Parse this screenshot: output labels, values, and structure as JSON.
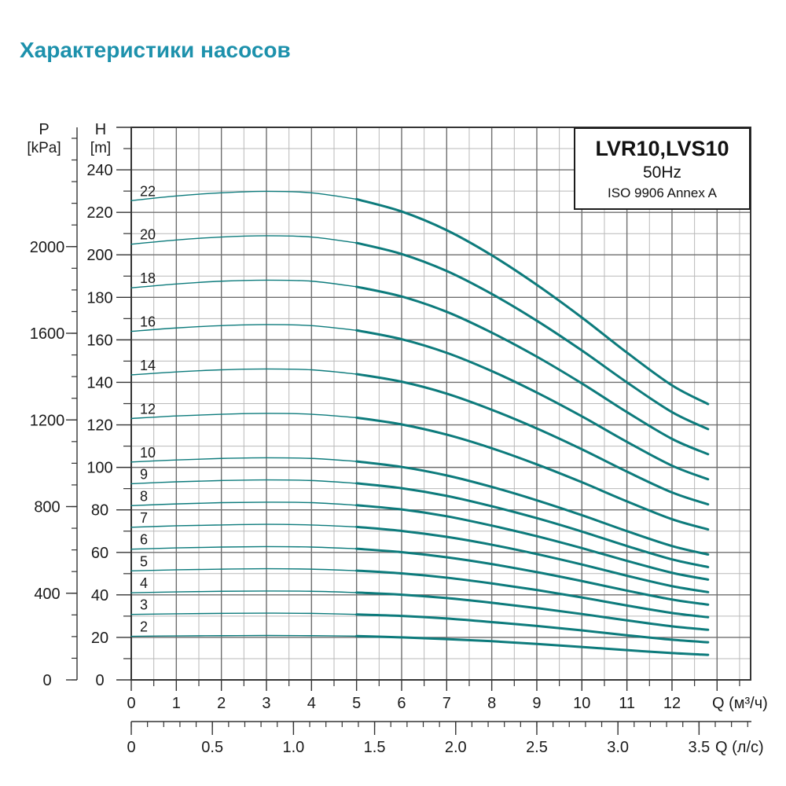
{
  "page_title": "Характеристики насосов",
  "accent_color": "#1d91ac",
  "legend": {
    "model": "LVR10,LVS10",
    "frequency": "50Hz",
    "standard": "ISO 9906 Annex A"
  },
  "axes": {
    "pressure": {
      "name": "P",
      "unit": "[kPa]",
      "tick_labels": [
        0,
        400,
        800,
        1200,
        1600,
        2000
      ],
      "minor_step_kpa": 100,
      "minor_max_kpa": 2500
    },
    "head": {
      "name": "H",
      "unit": "[m]",
      "tick_labels": [
        0,
        20,
        40,
        60,
        80,
        100,
        120,
        140,
        160,
        180,
        200,
        220,
        240
      ],
      "minor_step_m": 10,
      "minor_max_m": 250
    },
    "flow_m3h": {
      "unit_label": "Q (м³/ч)",
      "tick_labels": [
        0,
        1,
        2,
        3,
        4,
        5,
        6,
        7,
        8,
        9,
        10,
        11,
        12
      ],
      "major_tick_max": 13,
      "minor_step": 0.5,
      "minor_max": 13.5
    },
    "flow_ls": {
      "unit_label": "Q (л/с)",
      "tick_labels": [
        "0",
        "0.5",
        "1.0",
        "1.5",
        "2.0",
        "2.5",
        "3.0",
        "3.5"
      ],
      "major_step_ls": 0.5,
      "minor_step_ls": 0.1,
      "minor_max_ls": 3.8,
      "m3h_per_ls": 3.6
    }
  },
  "chart_data": {
    "type": "line",
    "title": "LVR10,LVS10 50Hz ISO 9906 Annex A",
    "xlabel": "Q (м³/ч)",
    "ylabel": "H [m]",
    "x_range": [
      0,
      13.75
    ],
    "y_range": [
      0,
      260
    ],
    "grid": "on",
    "legend_position": "top-right",
    "line_color": "#0d7b7c",
    "bold_from_x": 5,
    "x": [
      0,
      1,
      2,
      3,
      4,
      5,
      6,
      7,
      8,
      9,
      10,
      11,
      12,
      12.8
    ],
    "series": [
      {
        "name": "22",
        "stages": 22,
        "values": [
          225.5,
          227.7,
          229.2,
          229.9,
          229.2,
          226.2,
          220.4,
          211.6,
          199.8,
          185.9,
          170.5,
          154.0,
          138.6,
          129.8
        ]
      },
      {
        "name": "20",
        "stages": 20,
        "values": [
          205.0,
          207.0,
          208.4,
          209.0,
          208.4,
          205.6,
          200.4,
          192.4,
          181.6,
          169.0,
          155.0,
          140.0,
          126.0,
          118.0
        ]
      },
      {
        "name": "18",
        "stages": 18,
        "values": [
          184.5,
          186.3,
          187.6,
          188.1,
          187.6,
          185.0,
          180.4,
          173.2,
          163.4,
          152.1,
          139.5,
          126.0,
          113.4,
          106.2
        ]
      },
      {
        "name": "16",
        "stages": 16,
        "values": [
          164.0,
          165.6,
          166.7,
          167.2,
          166.7,
          164.5,
          160.3,
          153.9,
          145.3,
          135.2,
          124.0,
          112.0,
          100.8,
          94.4
        ]
      },
      {
        "name": "14",
        "stages": 14,
        "values": [
          143.5,
          144.9,
          145.9,
          146.3,
          145.9,
          143.9,
          140.3,
          134.7,
          127.1,
          118.3,
          108.5,
          98.0,
          88.2,
          82.6
        ]
      },
      {
        "name": "12",
        "stages": 12,
        "values": [
          123.0,
          124.2,
          125.0,
          125.4,
          125.0,
          123.4,
          120.2,
          115.4,
          109.0,
          101.4,
          93.0,
          84.0,
          75.6,
          70.8
        ]
      },
      {
        "name": "10",
        "stages": 10,
        "values": [
          102.5,
          103.5,
          104.2,
          104.5,
          104.2,
          102.8,
          100.2,
          96.2,
          90.8,
          84.5,
          77.5,
          70.0,
          63.0,
          59.0
        ]
      },
      {
        "name": "9",
        "stages": 9,
        "values": [
          92.3,
          93.2,
          93.8,
          94.1,
          93.8,
          92.5,
          90.2,
          86.6,
          81.7,
          76.1,
          69.8,
          63.0,
          56.7,
          53.1
        ]
      },
      {
        "name": "8",
        "stages": 8,
        "values": [
          82.0,
          82.8,
          83.4,
          83.6,
          83.4,
          82.2,
          80.2,
          77.0,
          72.6,
          67.6,
          62.0,
          56.0,
          50.4,
          47.2
        ]
      },
      {
        "name": "7",
        "stages": 7,
        "values": [
          71.8,
          72.5,
          72.9,
          73.2,
          72.9,
          72.0,
          70.1,
          67.3,
          63.6,
          59.2,
          54.3,
          49.0,
          44.1,
          41.3
        ]
      },
      {
        "name": "6",
        "stages": 6,
        "values": [
          61.5,
          62.1,
          62.5,
          62.7,
          62.5,
          61.7,
          60.1,
          57.7,
          54.5,
          50.7,
          46.5,
          42.0,
          37.8,
          35.4
        ]
      },
      {
        "name": "5",
        "stages": 5,
        "values": [
          51.3,
          51.8,
          52.1,
          52.3,
          52.1,
          51.4,
          50.1,
          48.1,
          45.4,
          42.3,
          38.8,
          35.0,
          31.5,
          29.5
        ]
      },
      {
        "name": "4",
        "stages": 4,
        "values": [
          41.0,
          41.4,
          41.7,
          41.8,
          41.7,
          41.1,
          40.1,
          38.5,
          36.3,
          33.8,
          31.0,
          28.0,
          25.2,
          23.6
        ]
      },
      {
        "name": "3",
        "stages": 3,
        "values": [
          30.8,
          31.1,
          31.3,
          31.4,
          31.3,
          30.8,
          30.1,
          28.9,
          27.2,
          25.4,
          23.3,
          21.0,
          18.9,
          17.7
        ]
      },
      {
        "name": "2",
        "stages": 2,
        "values": [
          20.5,
          20.7,
          20.8,
          20.9,
          20.8,
          20.6,
          20.0,
          19.2,
          18.2,
          16.9,
          15.5,
          14.0,
          12.6,
          11.8
        ]
      }
    ]
  }
}
